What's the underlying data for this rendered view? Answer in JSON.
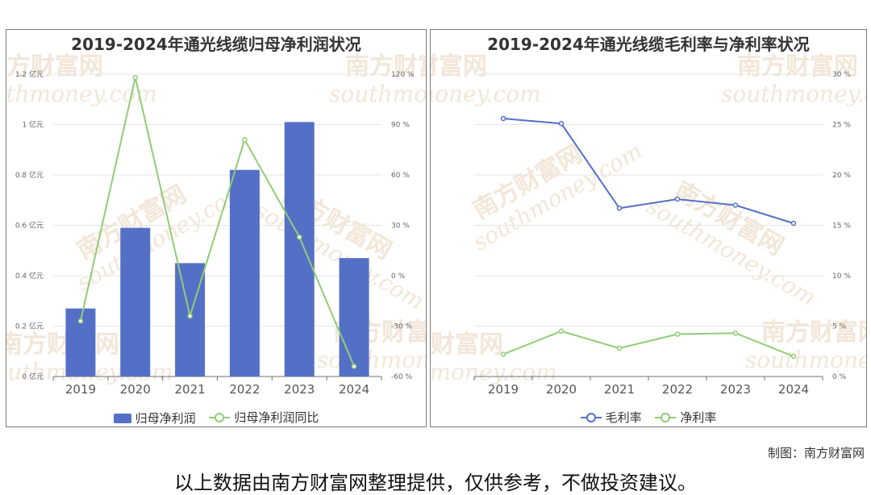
{
  "footer": {
    "credit": "制图：南方财富网",
    "disclaimer": "以上数据由南方财富网整理提供，仅供参考，不做投资建议。"
  },
  "watermark": {
    "cn": "南方财富网",
    "en": "southmoney.com"
  },
  "chart_data": [
    {
      "type": "bar",
      "title": "2019-2024年通光线缆归母净利润状况",
      "categories": [
        "2019",
        "2020",
        "2021",
        "2022",
        "2023",
        "2024"
      ],
      "series": [
        {
          "name": "归母净利润",
          "type": "bar",
          "axis": "left",
          "values": [
            0.27,
            0.59,
            0.45,
            0.82,
            1.01,
            0.47
          ],
          "color": "#5470c6"
        },
        {
          "name": "归母净利润同比",
          "type": "line",
          "axis": "right",
          "values": [
            -27,
            118,
            -24,
            81,
            23,
            -54
          ],
          "color": "#91cc75"
        }
      ],
      "yaxis_left": {
        "min": 0,
        "max": 1.2,
        "ticks": [
          "0 亿元",
          "0.2 亿元",
          "0.4 亿元",
          "0.6 亿元",
          "0.8 亿元",
          "1 亿元",
          "1.2 亿元"
        ]
      },
      "yaxis_right": {
        "min": -60,
        "max": 120,
        "ticks": [
          "-60 %",
          "-30 %",
          "0 %",
          "30 %",
          "60 %",
          "90 %",
          "120 %"
        ]
      },
      "grid": true,
      "legend": "bottom"
    },
    {
      "type": "line",
      "title": "2019-2024年通光线缆毛利率与净利率状况",
      "categories": [
        "2019",
        "2020",
        "2021",
        "2022",
        "2023",
        "2024"
      ],
      "series": [
        {
          "name": "毛利率",
          "values": [
            25.6,
            25.1,
            16.7,
            17.6,
            17.0,
            15.2
          ],
          "color": "#5470c6"
        },
        {
          "name": "净利率",
          "values": [
            2.2,
            4.5,
            2.8,
            4.2,
            4.3,
            2.0
          ],
          "color": "#91cc75"
        }
      ],
      "yaxis_right": {
        "min": 0,
        "max": 30,
        "ticks": [
          "0 %",
          "5 %",
          "10 %",
          "15 %",
          "20 %",
          "25 %",
          "30 %"
        ]
      },
      "grid": true,
      "legend": "bottom"
    }
  ]
}
